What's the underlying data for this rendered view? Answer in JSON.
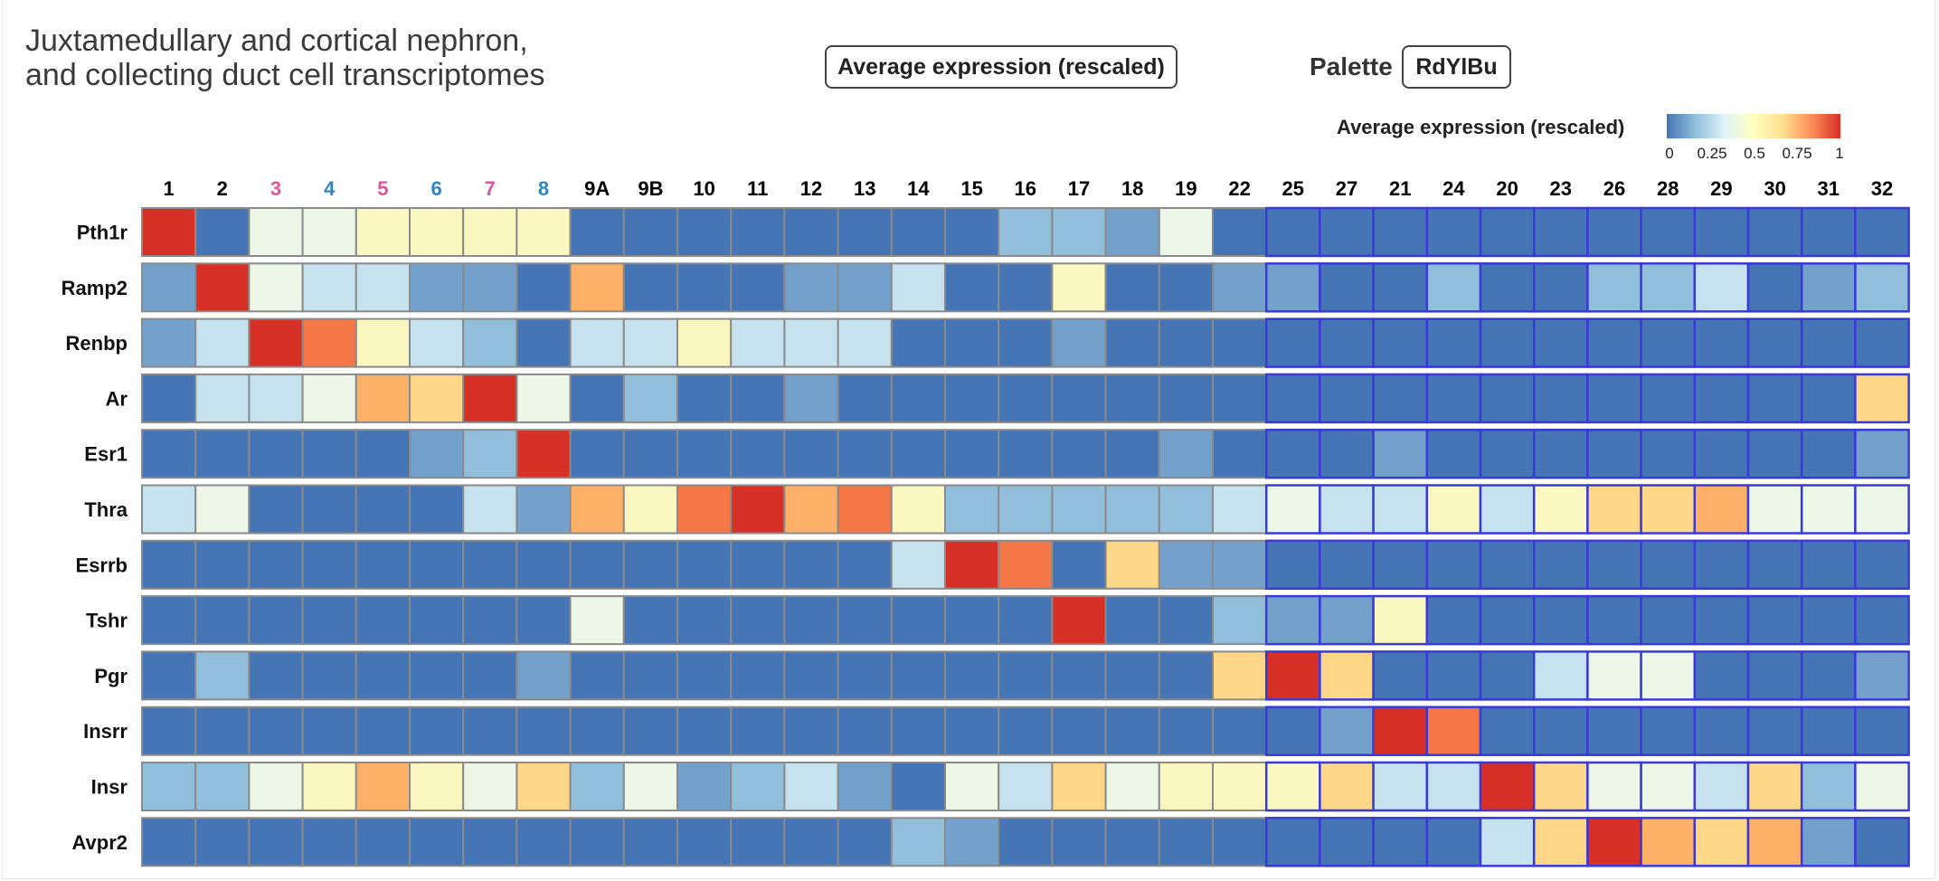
{
  "title_line1": "Juxtamedullary and cortical nephron,",
  "title_line2": "and collecting duct cell transcriptomes",
  "measure_button": "Average expression (rescaled)",
  "palette_label": "Palette",
  "palette_button": "RdYlBu",
  "legend": {
    "title": "Average expression (rescaled)",
    "ticks": [
      "0",
      "0.25",
      "0.5",
      "0.75",
      "1"
    ]
  },
  "colors": {
    "low": "#4575b4",
    "high": "#d73027",
    "highlight_border": "#3a3ad8",
    "cell_border": "#8a8a8a",
    "col_pink": "#e0559b",
    "col_blue": "#2e86c1",
    "col_black": "#000000"
  },
  "chart_data": {
    "type": "heatmap",
    "columns": [
      "1",
      "2",
      "3",
      "4",
      "5",
      "6",
      "7",
      "8",
      "9A",
      "9B",
      "10",
      "11",
      "12",
      "13",
      "14",
      "15",
      "16",
      "17",
      "18",
      "19",
      "22",
      "25",
      "27",
      "21",
      "24",
      "20",
      "23",
      "26",
      "28",
      "29",
      "30",
      "31",
      "32"
    ],
    "column_colors": [
      "black",
      "black",
      "pink",
      "blue",
      "pink",
      "blue",
      "pink",
      "blue",
      "black",
      "black",
      "black",
      "black",
      "black",
      "black",
      "black",
      "black",
      "black",
      "black",
      "black",
      "black",
      "black",
      "black",
      "black",
      "black",
      "black",
      "black",
      "black",
      "black",
      "black",
      "black",
      "black",
      "black",
      "black"
    ],
    "rows": [
      "Pth1r",
      "Ramp2",
      "Renbp",
      "Ar",
      "Esr1",
      "Thra",
      "Esrrb",
      "Tshr",
      "Pgr",
      "Insrr",
      "Insr",
      "Avpr2"
    ],
    "highlighted_columns_from": "25",
    "scale": [
      0,
      1
    ],
    "values": [
      [
        1.0,
        0.0,
        0.45,
        0.45,
        0.55,
        0.55,
        0.55,
        0.55,
        0.0,
        0.0,
        0.0,
        0.0,
        0.0,
        0.0,
        0.0,
        0.0,
        0.25,
        0.25,
        0.15,
        0.45,
        0.0,
        0.0,
        0.0,
        0.0,
        0.0,
        0.0,
        0.0,
        0.0,
        0.0,
        0.0,
        0.0,
        0.0,
        0.0
      ],
      [
        0.15,
        1.0,
        0.45,
        0.35,
        0.35,
        0.15,
        0.15,
        0.0,
        0.8,
        0.0,
        0.0,
        0.0,
        0.15,
        0.15,
        0.35,
        0.0,
        0.0,
        0.55,
        0.0,
        0.0,
        0.15,
        0.15,
        0.0,
        0.0,
        0.25,
        0.0,
        0.0,
        0.25,
        0.25,
        0.35,
        0.0,
        0.15,
        0.25
      ],
      [
        0.15,
        0.35,
        1.0,
        0.9,
        0.55,
        0.35,
        0.25,
        0.0,
        0.35,
        0.35,
        0.55,
        0.35,
        0.35,
        0.35,
        0.0,
        0.0,
        0.0,
        0.15,
        0.0,
        0.0,
        0.0,
        0.0,
        0.0,
        0.0,
        0.0,
        0.0,
        0.0,
        0.0,
        0.0,
        0.0,
        0.0,
        0.0,
        0.0
      ],
      [
        0.0,
        0.35,
        0.35,
        0.45,
        0.8,
        0.7,
        1.0,
        0.45,
        0.0,
        0.25,
        0.0,
        0.0,
        0.15,
        0.0,
        0.0,
        0.0,
        0.0,
        0.0,
        0.0,
        0.0,
        0.0,
        0.0,
        0.0,
        0.0,
        0.0,
        0.0,
        0.0,
        0.0,
        0.0,
        0.0,
        0.0,
        0.0,
        0.7
      ],
      [
        0.0,
        0.0,
        0.0,
        0.0,
        0.0,
        0.15,
        0.25,
        1.0,
        0.0,
        0.0,
        0.0,
        0.0,
        0.0,
        0.0,
        0.0,
        0.0,
        0.0,
        0.0,
        0.0,
        0.15,
        0.0,
        0.0,
        0.0,
        0.15,
        0.0,
        0.0,
        0.0,
        0.0,
        0.0,
        0.0,
        0.0,
        0.0,
        0.15
      ],
      [
        0.35,
        0.45,
        0.0,
        0.0,
        0.0,
        0.0,
        0.35,
        0.15,
        0.8,
        0.55,
        0.9,
        1.0,
        0.8,
        0.9,
        0.55,
        0.25,
        0.25,
        0.25,
        0.25,
        0.25,
        0.35,
        0.45,
        0.35,
        0.35,
        0.55,
        0.35,
        0.55,
        0.7,
        0.7,
        0.8,
        0.45,
        0.45,
        0.45
      ],
      [
        0.0,
        0.0,
        0.0,
        0.0,
        0.0,
        0.0,
        0.0,
        0.0,
        0.0,
        0.0,
        0.0,
        0.0,
        0.0,
        0.0,
        0.35,
        1.0,
        0.9,
        0.0,
        0.7,
        0.15,
        0.15,
        0.0,
        0.0,
        0.0,
        0.0,
        0.0,
        0.0,
        0.0,
        0.0,
        0.0,
        0.0,
        0.0,
        0.0
      ],
      [
        0.0,
        0.0,
        0.0,
        0.0,
        0.0,
        0.0,
        0.0,
        0.0,
        0.45,
        0.0,
        0.0,
        0.0,
        0.0,
        0.0,
        0.0,
        0.0,
        0.0,
        1.0,
        0.0,
        0.0,
        0.25,
        0.15,
        0.15,
        0.55,
        0.0,
        0.0,
        0.0,
        0.0,
        0.0,
        0.0,
        0.0,
        0.0,
        0.0
      ],
      [
        0.0,
        0.25,
        0.0,
        0.0,
        0.0,
        0.0,
        0.0,
        0.15,
        0.0,
        0.0,
        0.0,
        0.0,
        0.0,
        0.0,
        0.0,
        0.0,
        0.0,
        0.0,
        0.0,
        0.0,
        0.7,
        1.0,
        0.7,
        0.0,
        0.0,
        0.0,
        0.35,
        0.45,
        0.45,
        0.0,
        0.0,
        0.0,
        0.15
      ],
      [
        0.0,
        0.0,
        0.0,
        0.0,
        0.0,
        0.0,
        0.0,
        0.0,
        0.0,
        0.0,
        0.0,
        0.0,
        0.0,
        0.0,
        0.0,
        0.0,
        0.0,
        0.0,
        0.0,
        0.0,
        0.0,
        0.0,
        0.15,
        1.0,
        0.9,
        0.0,
        0.0,
        0.0,
        0.0,
        0.0,
        0.0,
        0.0,
        0.0
      ],
      [
        0.25,
        0.25,
        0.45,
        0.55,
        0.8,
        0.55,
        0.45,
        0.7,
        0.25,
        0.45,
        0.15,
        0.25,
        0.35,
        0.15,
        0.0,
        0.45,
        0.35,
        0.7,
        0.45,
        0.55,
        0.55,
        0.55,
        0.7,
        0.35,
        0.35,
        1.0,
        0.7,
        0.45,
        0.45,
        0.35,
        0.7,
        0.25,
        0.45
      ],
      [
        0.0,
        0.0,
        0.0,
        0.0,
        0.0,
        0.0,
        0.0,
        0.0,
        0.0,
        0.0,
        0.0,
        0.0,
        0.0,
        0.0,
        0.25,
        0.15,
        0.0,
        0.0,
        0.0,
        0.0,
        0.0,
        0.0,
        0.0,
        0.0,
        0.0,
        0.35,
        0.7,
        1.0,
        0.8,
        0.7,
        0.8,
        0.15,
        0.0
      ]
    ]
  }
}
